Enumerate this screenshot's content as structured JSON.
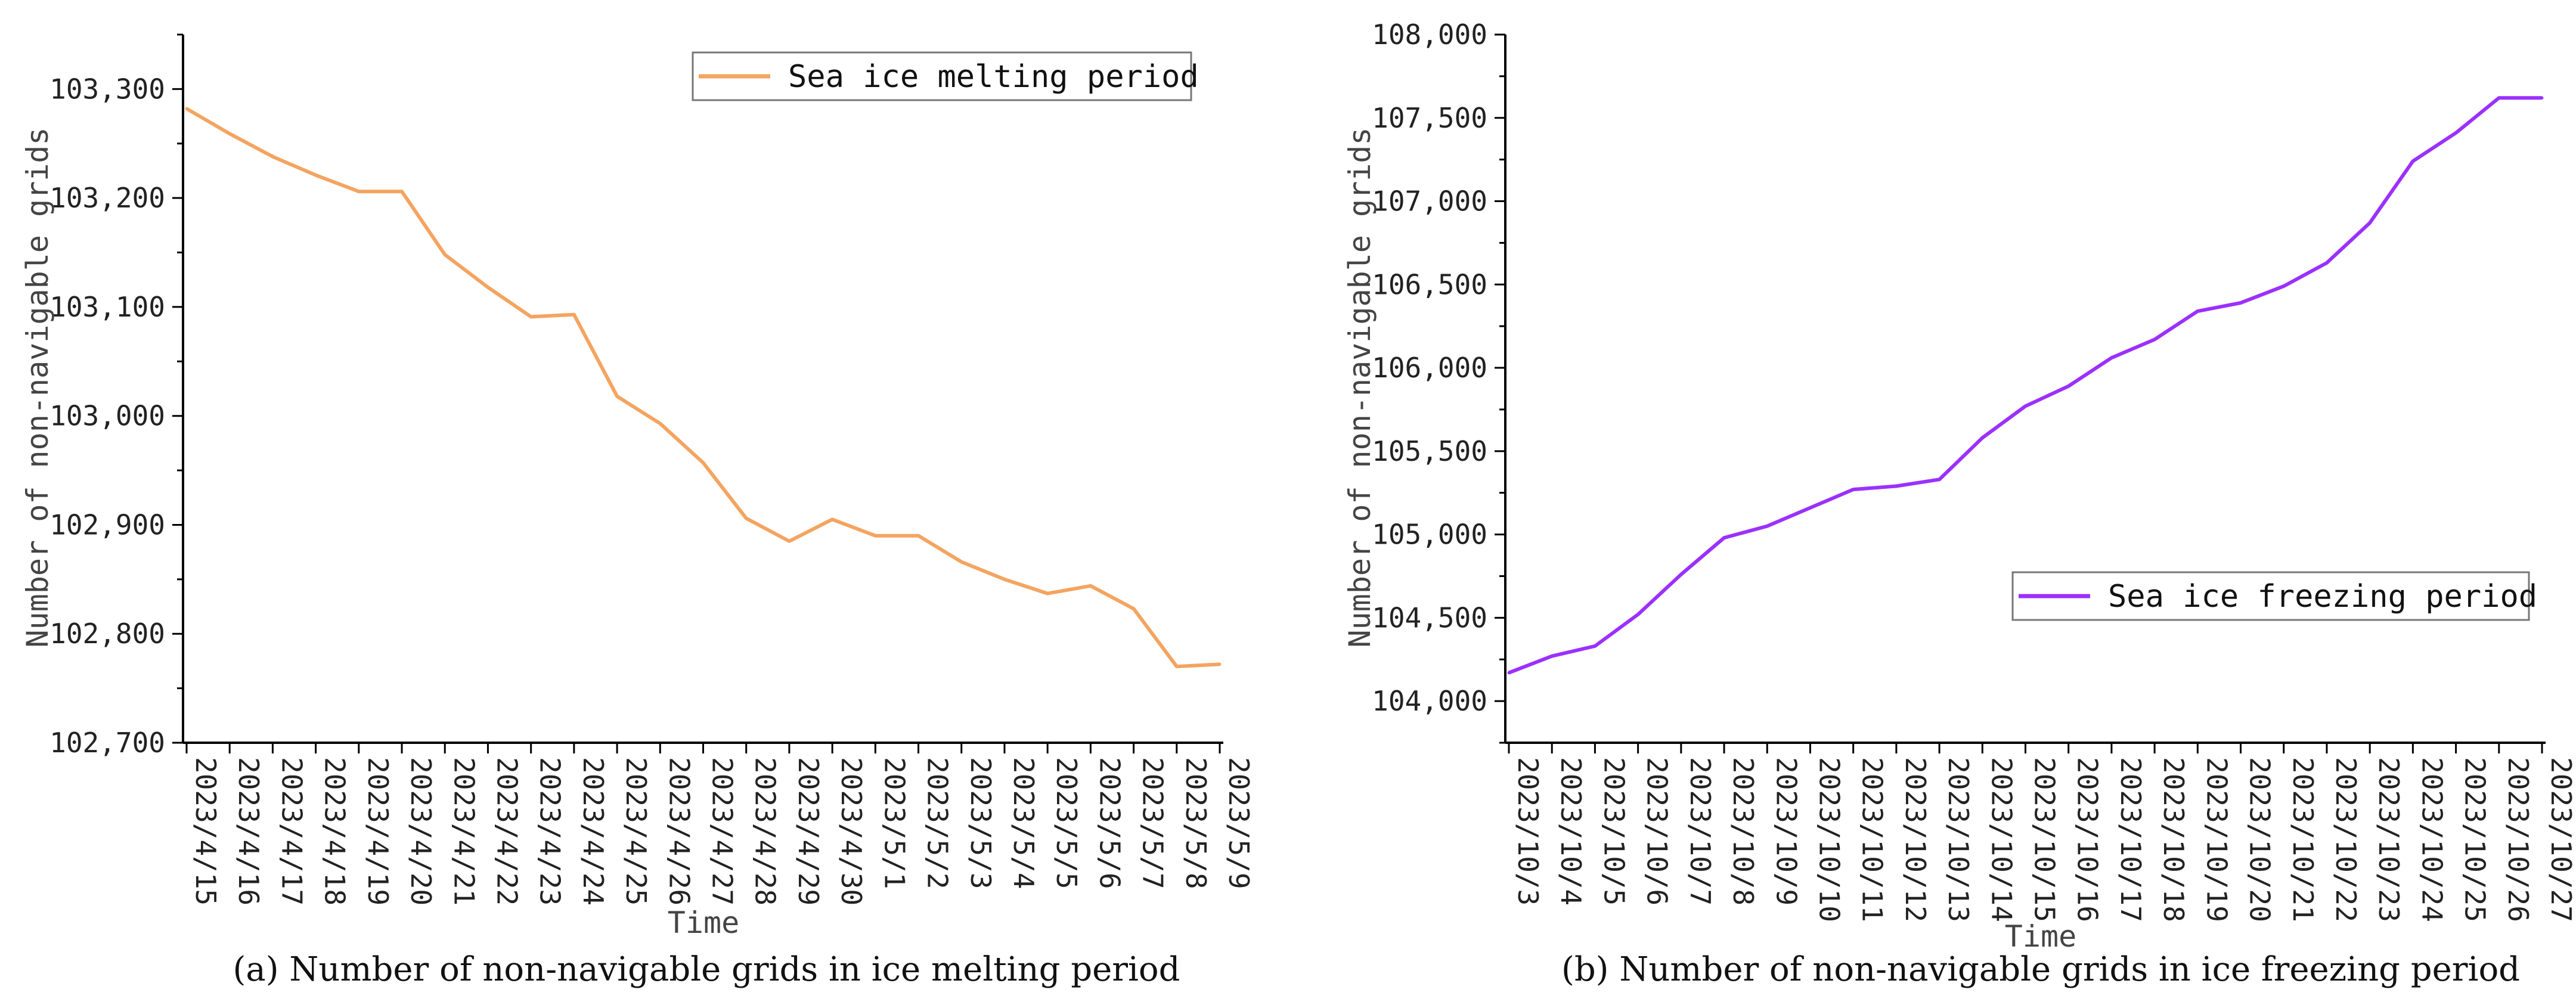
{
  "chart_data": [
    {
      "type": "line",
      "caption": "(a) Number of non-navigable grids in ice melting period",
      "xlabel": "Time",
      "ylabel": "Number of non-navigable grids",
      "ylim": [
        102700,
        103350
      ],
      "y_ticks": [
        102700,
        102800,
        102900,
        103000,
        103100,
        103200,
        103300
      ],
      "y_tick_labels": [
        "102,700",
        "102,800",
        "102,900",
        "103,000",
        "103,100",
        "103,200",
        "103,300"
      ],
      "legend_position": "top-right",
      "color": "#F4A460",
      "categories": [
        "2023/4/15",
        "2023/4/16",
        "2023/4/17",
        "2023/4/18",
        "2023/4/19",
        "2023/4/20",
        "2023/4/21",
        "2023/4/22",
        "2023/4/23",
        "2023/4/24",
        "2023/4/25",
        "2023/4/26",
        "2023/4/27",
        "2023/4/28",
        "2023/4/29",
        "2023/4/30",
        "2023/5/1",
        "2023/5/2",
        "2023/5/3",
        "2023/5/4",
        "2023/5/5",
        "2023/5/6",
        "2023/5/7",
        "2023/5/8",
        "2023/5/9"
      ],
      "series": [
        {
          "name": "Sea ice melting period",
          "values": [
            103282,
            103259,
            103238,
            103221,
            103206,
            103206,
            103148,
            103118,
            103091,
            103093,
            103018,
            102993,
            102957,
            102906,
            102885,
            102905,
            102890,
            102890,
            102866,
            102850,
            102837,
            102844,
            102823,
            102770,
            102772
          ]
        }
      ]
    },
    {
      "type": "line",
      "caption": "(b) Number of non-navigable grids in ice freezing period",
      "xlabel": "Time",
      "ylabel": "Number of non-navigable grids",
      "ylim": [
        103750,
        108000
      ],
      "y_ticks": [
        104000,
        104500,
        105000,
        105500,
        106000,
        106500,
        107000,
        107500,
        108000
      ],
      "y_tick_labels": [
        "104,000",
        "104,500",
        "105,000",
        "105,500",
        "106,000",
        "106,500",
        "107,000",
        "107,500",
        "108,000"
      ],
      "legend_position": "center-right",
      "color": "#9B30FF",
      "categories": [
        "2023/10/3",
        "2023/10/4",
        "2023/10/5",
        "2023/10/6",
        "2023/10/7",
        "2023/10/8",
        "2023/10/9",
        "2023/10/10",
        "2023/10/11",
        "2023/10/12",
        "2023/10/13",
        "2023/10/14",
        "2023/10/15",
        "2023/10/16",
        "2023/10/17",
        "2023/10/18",
        "2023/10/19",
        "2023/10/20",
        "2023/10/21",
        "2023/10/22",
        "2023/10/23",
        "2023/10/24",
        "2023/10/25",
        "2023/10/26",
        "2023/10/27"
      ],
      "series": [
        {
          "name": "Sea ice freezing period",
          "values": [
            104170,
            104270,
            104330,
            104520,
            104760,
            104980,
            105050,
            105160,
            105270,
            105290,
            105330,
            105580,
            105770,
            105890,
            106060,
            106170,
            106340,
            106390,
            106490,
            106630,
            106870,
            107240,
            107410,
            107620,
            107620
          ]
        }
      ]
    }
  ]
}
